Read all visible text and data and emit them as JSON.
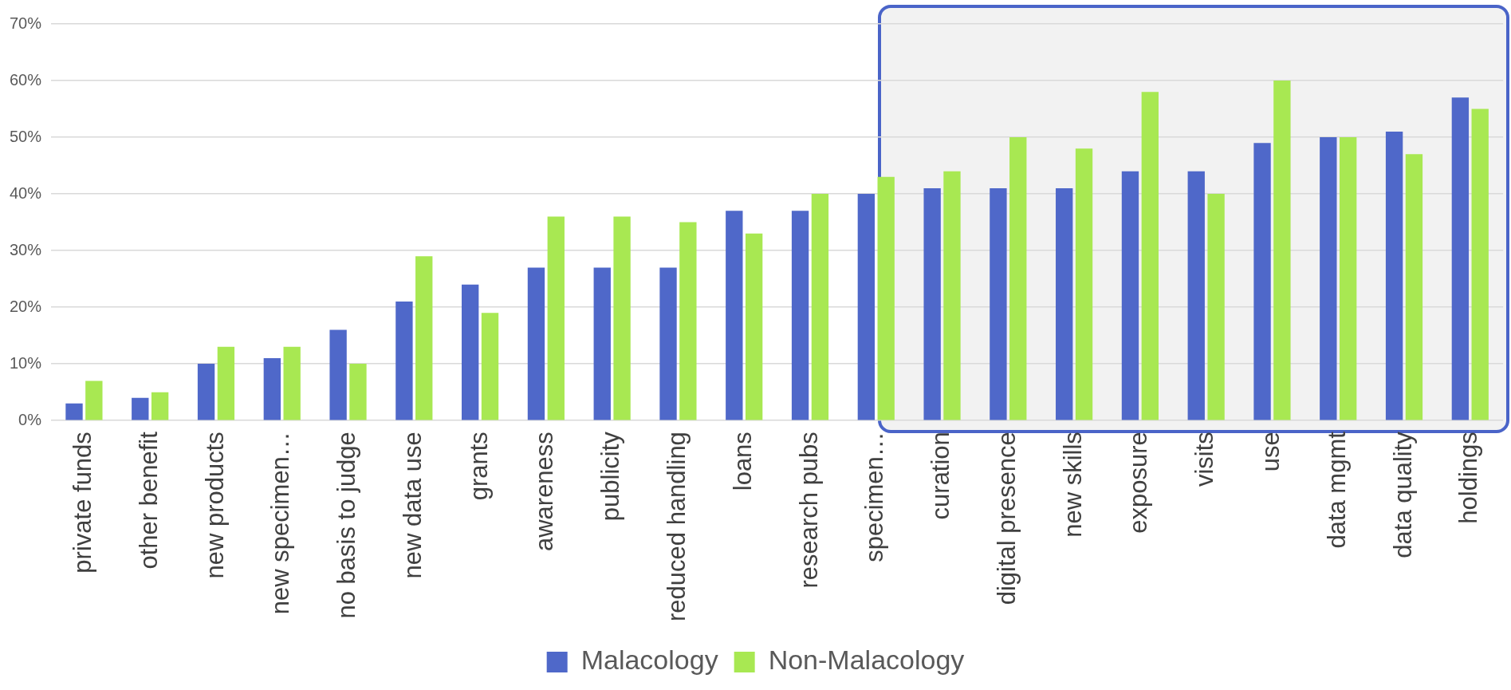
{
  "chart_data": {
    "type": "bar",
    "categories": [
      "private funds",
      "other benefit",
      "new products",
      "new specimen…",
      "no basis to judge",
      "new data use",
      "grants",
      "awareness",
      "publicity",
      "reduced handling",
      "loans",
      "research pubs",
      "specimen…",
      "curation",
      "digital presence",
      "new skills",
      "exposure",
      "visits",
      "use",
      "data mgmt",
      "data quality",
      "holdings"
    ],
    "series": [
      {
        "name": "Malacology",
        "color": "#4f68c9",
        "values": [
          3,
          4,
          10,
          11,
          16,
          21,
          24,
          27,
          27,
          27,
          37,
          37,
          40,
          41,
          41,
          41,
          44,
          44,
          49,
          50,
          51,
          57
        ]
      },
      {
        "name": "Non-Malacology",
        "color": "#a8e852",
        "values": [
          7,
          5,
          13,
          13,
          10,
          29,
          19,
          36,
          36,
          35,
          33,
          40,
          43,
          44,
          50,
          48,
          58,
          40,
          60,
          50,
          47,
          55
        ]
      }
    ],
    "ylim": [
      0,
      70
    ],
    "yticks": [
      {
        "value": 0,
        "label": "0%"
      },
      {
        "value": 10,
        "label": "10%"
      },
      {
        "value": 20,
        "label": "20%"
      },
      {
        "value": 30,
        "label": "30%"
      },
      {
        "value": 40,
        "label": "40%"
      },
      {
        "value": 50,
        "label": "50%"
      },
      {
        "value": 60,
        "label": "60%"
      },
      {
        "value": 70,
        "label": "70%"
      }
    ],
    "grid": "y",
    "legend": "bottom"
  }
}
